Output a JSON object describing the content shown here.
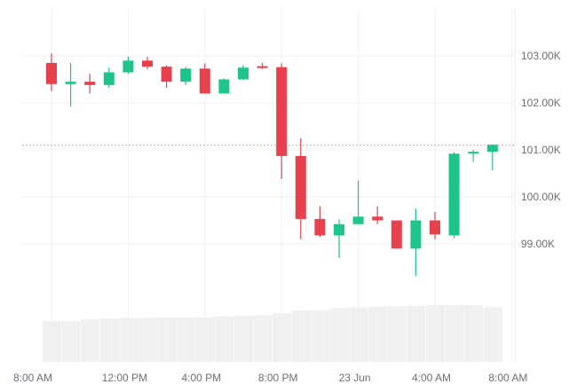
{
  "chart_data": {
    "type": "candlestick",
    "y_axis": {
      "position": "right",
      "range": [
        98100,
        104100
      ],
      "ticks": [
        {
          "value": 103000,
          "label": "103.00K"
        },
        {
          "value": 102000,
          "label": "102.00K"
        },
        {
          "value": 101000,
          "label": "101.00K"
        },
        {
          "value": 100000,
          "label": "100.00K"
        },
        {
          "value": 99000,
          "label": "99.00K"
        }
      ]
    },
    "x_axis": {
      "ticks": [
        {
          "index": 0,
          "label": "8:00 AM"
        },
        {
          "index": 4,
          "label": "12:00 PM"
        },
        {
          "index": 8,
          "label": "4:00 PM"
        },
        {
          "index": 12,
          "label": "8:00 PM"
        },
        {
          "index": 16,
          "label": "23 Jun"
        },
        {
          "index": 20,
          "label": "4:00 AM"
        },
        {
          "index": 24,
          "label": "8:00 AM"
        }
      ]
    },
    "current_price": 101100,
    "colors": {
      "up": "#1fc48a",
      "down": "#e8414e",
      "volume": "#eef0f1",
      "grid": "#eef0f2",
      "price_line": "#d05a60"
    },
    "volume_max": 100,
    "candles": [
      {
        "o": 102850,
        "h": 103050,
        "l": 102250,
        "c": 102400
      },
      {
        "o": 102400,
        "h": 102850,
        "l": 101920,
        "c": 102450
      },
      {
        "o": 102450,
        "h": 102620,
        "l": 102200,
        "c": 102380
      },
      {
        "o": 102380,
        "h": 102750,
        "l": 102320,
        "c": 102650
      },
      {
        "o": 102650,
        "h": 102980,
        "l": 102620,
        "c": 102900
      },
      {
        "o": 102900,
        "h": 102980,
        "l": 102720,
        "c": 102770
      },
      {
        "o": 102770,
        "h": 102800,
        "l": 102320,
        "c": 102450
      },
      {
        "o": 102450,
        "h": 102760,
        "l": 102380,
        "c": 102730
      },
      {
        "o": 102730,
        "h": 102840,
        "l": 102200,
        "c": 102200
      },
      {
        "o": 102200,
        "h": 102520,
        "l": 102200,
        "c": 102500
      },
      {
        "o": 102500,
        "h": 102800,
        "l": 102480,
        "c": 102750
      },
      {
        "o": 102780,
        "h": 102850,
        "l": 102720,
        "c": 102760
      },
      {
        "o": 102760,
        "h": 102840,
        "l": 100380,
        "c": 100870
      },
      {
        "o": 100870,
        "h": 101250,
        "l": 99100,
        "c": 99530
      },
      {
        "o": 99530,
        "h": 99800,
        "l": 99150,
        "c": 99180
      },
      {
        "o": 99180,
        "h": 99520,
        "l": 98700,
        "c": 99420
      },
      {
        "o": 99420,
        "h": 100350,
        "l": 99420,
        "c": 99580
      },
      {
        "o": 99580,
        "h": 99800,
        "l": 99420,
        "c": 99500
      },
      {
        "o": 99500,
        "h": 99500,
        "l": 98900,
        "c": 98900
      },
      {
        "o": 98900,
        "h": 99750,
        "l": 98320,
        "c": 99500
      },
      {
        "o": 99500,
        "h": 99680,
        "l": 99100,
        "c": 99200
      },
      {
        "o": 99180,
        "h": 100950,
        "l": 99120,
        "c": 100920
      },
      {
        "o": 100920,
        "h": 101000,
        "l": 100750,
        "c": 100960
      },
      {
        "o": 100960,
        "h": 101120,
        "l": 100570,
        "c": 101110
      }
    ],
    "volumes": [
      61,
      61,
      64,
      65,
      66,
      66,
      67,
      67,
      67,
      68,
      69,
      70,
      73,
      77,
      78,
      81,
      82,
      83,
      84,
      84,
      85,
      85,
      85,
      82
    ]
  }
}
